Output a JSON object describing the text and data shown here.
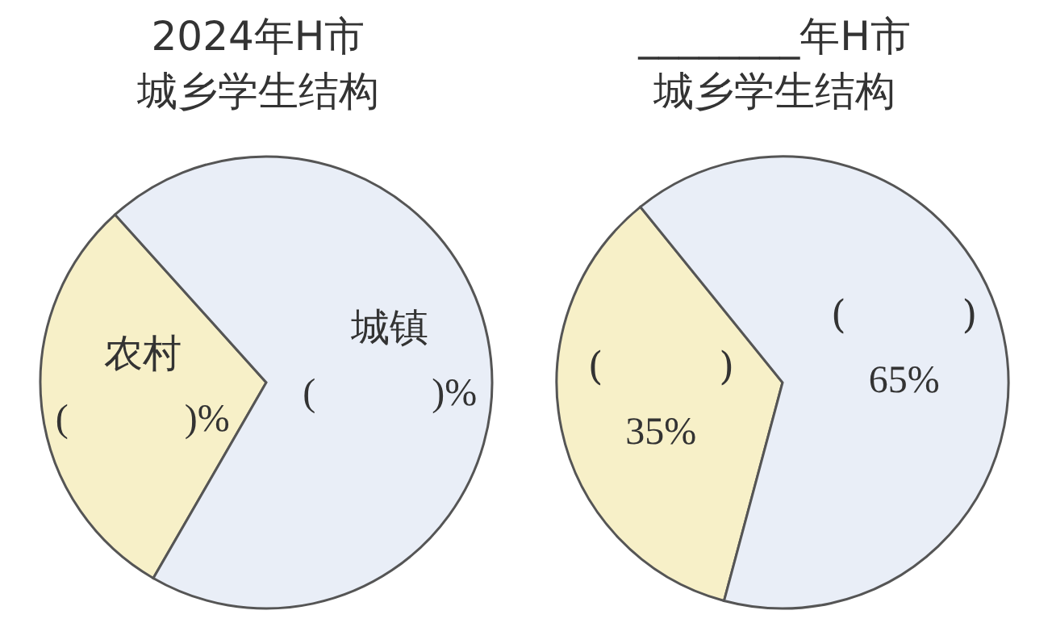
{
  "chart_data": [
    {
      "type": "pie",
      "title": "2024年H市",
      "subtitle": "城乡学生结构",
      "categories": [
        "农村",
        "城镇"
      ],
      "values": [
        30,
        70
      ],
      "colors": [
        "#f7f0c8",
        "#e9eef7"
      ],
      "value_labels": [
        "(　　　)%",
        "(　　　)%"
      ]
    },
    {
      "type": "pie",
      "title": "________年H市",
      "subtitle": "城乡学生结构",
      "categories": [
        "(　　　)",
        "(　　　)"
      ],
      "values": [
        35,
        65
      ],
      "colors": [
        "#f7f0c8",
        "#e9eef7"
      ],
      "value_labels": [
        "35%",
        "65%"
      ]
    }
  ]
}
